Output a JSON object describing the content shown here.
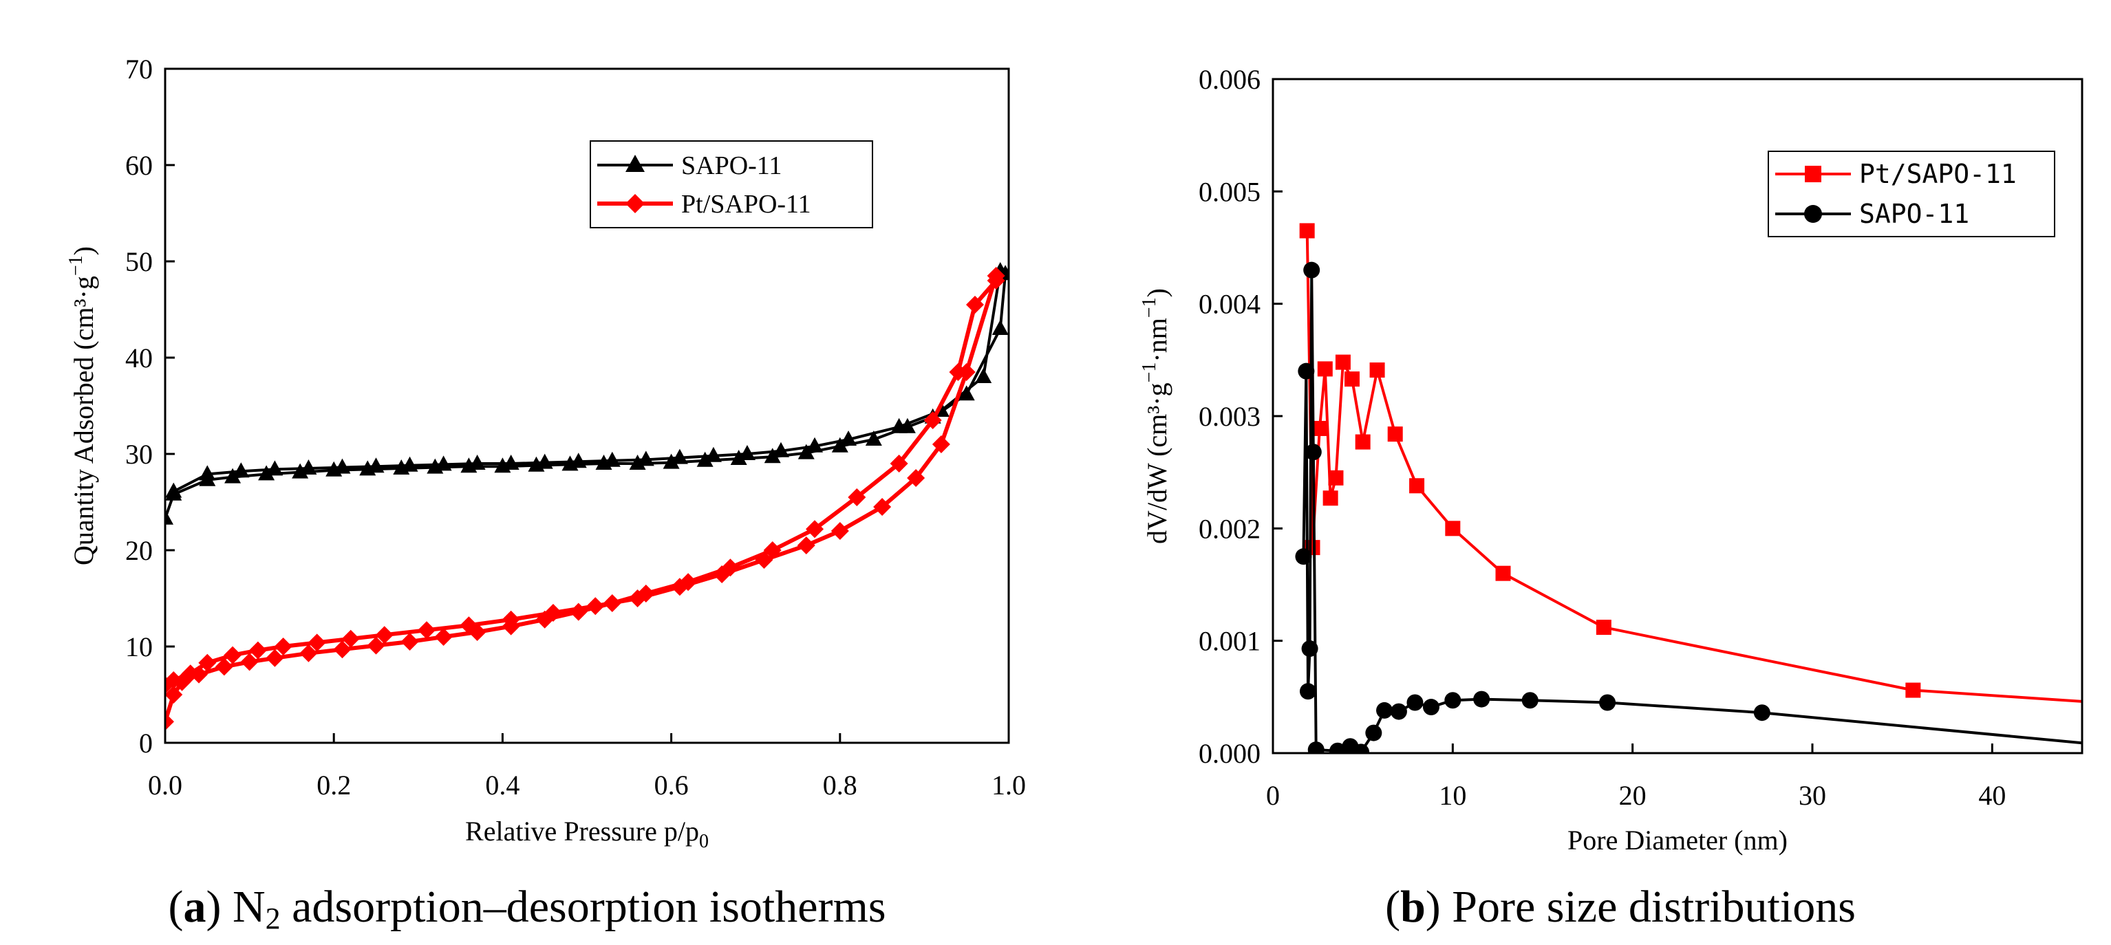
{
  "chart_data": [
    {
      "type": "line",
      "panel": "a",
      "xlabel": "Relative Pressure p/p",
      "xlabel_sub": "0",
      "ylabel": "Quantity Adsorbed (cm³·g",
      "ylabel_sup": "−1",
      "ylabel_end": ")",
      "xlim": [
        0.0,
        1.0
      ],
      "ylim": [
        0,
        70
      ],
      "xticks": [
        "0.0",
        "0.2",
        "0.4",
        "0.6",
        "0.8",
        "1.0"
      ],
      "yticks": [
        "0",
        "10",
        "20",
        "30",
        "40",
        "50",
        "60",
        "70"
      ],
      "legend_position": "upper-right",
      "series": [
        {
          "name": "SAPO-11",
          "color": "#000000",
          "marker": "triangle",
          "x": [
            0.0,
            0.01,
            0.05,
            0.08,
            0.12,
            0.16,
            0.2,
            0.24,
            0.28,
            0.32,
            0.36,
            0.4,
            0.44,
            0.48,
            0.52,
            0.56,
            0.6,
            0.64,
            0.68,
            0.72,
            0.76,
            0.8,
            0.84,
            0.88,
            0.91,
            0.95,
            0.99,
            0.996,
            0.99,
            0.97,
            0.92,
            0.87,
            0.81,
            0.77,
            0.73,
            0.69,
            0.65,
            0.61,
            0.57,
            0.53,
            0.49,
            0.45,
            0.41,
            0.37,
            0.33,
            0.29,
            0.25,
            0.21,
            0.17,
            0.13,
            0.09,
            0.05,
            0.01
          ],
          "y": [
            23.3,
            25.8,
            27.3,
            27.6,
            27.9,
            28.1,
            28.3,
            28.4,
            28.5,
            28.6,
            28.7,
            28.7,
            28.8,
            28.9,
            29.0,
            29.0,
            29.1,
            29.3,
            29.5,
            29.7,
            30.1,
            30.8,
            31.5,
            32.8,
            33.8,
            36.2,
            43.0,
            48.7,
            49.0,
            38.0,
            34.5,
            32.8,
            31.5,
            30.8,
            30.3,
            30.0,
            29.8,
            29.6,
            29.4,
            29.3,
            29.2,
            29.1,
            29.0,
            29.0,
            28.9,
            28.8,
            28.7,
            28.6,
            28.5,
            28.4,
            28.2,
            27.9,
            26.1
          ]
        },
        {
          "name": "Pt/SAPO-11",
          "color": "#ff0000",
          "marker": "diamond",
          "x": [
            0.0,
            0.01,
            0.02,
            0.04,
            0.07,
            0.1,
            0.13,
            0.17,
            0.21,
            0.25,
            0.29,
            0.33,
            0.37,
            0.41,
            0.45,
            0.49,
            0.53,
            0.57,
            0.62,
            0.67,
            0.72,
            0.77,
            0.82,
            0.87,
            0.91,
            0.94,
            0.96,
            0.985,
            0.985,
            0.95,
            0.92,
            0.89,
            0.85,
            0.8,
            0.76,
            0.71,
            0.66,
            0.61,
            0.56,
            0.51,
            0.46,
            0.41,
            0.36,
            0.31,
            0.26,
            0.22,
            0.18,
            0.14,
            0.11,
            0.08,
            0.05,
            0.03,
            0.01,
            0.0
          ],
          "y": [
            2.2,
            5.0,
            6.3,
            7.1,
            7.9,
            8.4,
            8.8,
            9.3,
            9.7,
            10.1,
            10.5,
            11.0,
            11.5,
            12.1,
            12.8,
            13.6,
            14.5,
            15.5,
            16.7,
            18.2,
            20.0,
            22.2,
            25.5,
            29.0,
            33.5,
            38.5,
            45.5,
            48.0,
            48.5,
            38.5,
            31.0,
            27.5,
            24.5,
            22.0,
            20.5,
            19.0,
            17.5,
            16.2,
            15.0,
            14.2,
            13.5,
            12.8,
            12.2,
            11.7,
            11.2,
            10.8,
            10.4,
            10.0,
            9.6,
            9.1,
            8.3,
            7.2,
            6.5,
            6.0
          ]
        }
      ],
      "caption_label": "a",
      "caption_text": "N",
      "caption_sub": "2",
      "caption_rest": "adsorption–desorption isotherms"
    },
    {
      "type": "line",
      "panel": "b",
      "xlabel": "Pore Diameter (nm)",
      "ylabel": "dV/dW (cm³·g",
      "ylabel_sup1": "−1",
      "ylabel_mid": "·nm",
      "ylabel_sup2": "−1",
      "ylabel_end": ")",
      "xlim": [
        0,
        45
      ],
      "ylim": [
        0.0,
        0.006
      ],
      "xticks": [
        "0",
        "10",
        "20",
        "30",
        "40"
      ],
      "yticks": [
        "0.000",
        "0.001",
        "0.002",
        "0.003",
        "0.004",
        "0.005",
        "0.006"
      ],
      "legend_position": "upper-right",
      "series": [
        {
          "name": "Pt/SAPO-11",
          "color": "#ff0000",
          "marker": "square",
          "x": [
            1.9,
            2.2,
            2.6,
            2.9,
            3.2,
            3.5,
            3.9,
            4.4,
            5.0,
            5.8,
            6.8,
            8.0,
            10.0,
            12.8,
            18.4,
            35.6,
            45.0
          ],
          "y": [
            0.00465,
            0.00183,
            0.00289,
            0.00342,
            0.00227,
            0.00245,
            0.00348,
            0.00333,
            0.00277,
            0.00341,
            0.00284,
            0.00238,
            0.002,
            0.0016,
            0.00112,
            0.00056,
            0.00046
          ],
          "marked": [
            true,
            true,
            true,
            true,
            true,
            true,
            true,
            true,
            true,
            true,
            true,
            true,
            true,
            true,
            true,
            true,
            false
          ]
        },
        {
          "name": "SAPO-11",
          "color": "#000000",
          "marker": "circle",
          "x": [
            1.7,
            1.85,
            1.95,
            2.05,
            2.15,
            2.25,
            2.4,
            3.6,
            4.3,
            4.9,
            5.6,
            6.2,
            7.0,
            7.9,
            8.8,
            10.0,
            11.6,
            14.3,
            18.6,
            27.2,
            45.0
          ],
          "y": [
            0.00175,
            0.0034,
            0.00055,
            0.00093,
            0.0043,
            0.00268,
            3e-05,
            2e-05,
            6e-05,
            1e-05,
            0.00018,
            0.00038,
            0.00037,
            0.00045,
            0.00041,
            0.00047,
            0.00048,
            0.00047,
            0.00045,
            0.00036,
            9e-05
          ],
          "marked": [
            true,
            true,
            true,
            true,
            true,
            true,
            true,
            true,
            true,
            true,
            true,
            true,
            true,
            true,
            true,
            true,
            true,
            true,
            true,
            true,
            false
          ]
        }
      ],
      "caption_label": "b",
      "caption_text": "Pore size distributions"
    }
  ]
}
